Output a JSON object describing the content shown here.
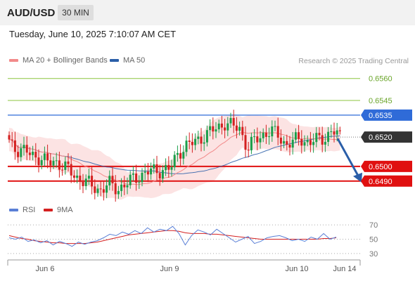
{
  "header": {
    "symbol": "AUD/USD",
    "timeframe": "30 MIN",
    "datetime": "Tuesday, June 10, 2025 7:10:07 AM CET"
  },
  "legend": {
    "ma20": "MA 20 + Bollinger Bands",
    "ma50": "MA 50",
    "credit": "Research © 2025 Trading Central",
    "rsi": "RSI",
    "ma9": "9MA"
  },
  "colors": {
    "ma20": "#f28a8a",
    "ma50": "#2a5ea8",
    "bands_fill": "#fbd9d9",
    "bull": "#1a9e4a",
    "bear": "#d42020",
    "rsi": "#5a7fd6",
    "ma9": "#d42020",
    "resistance_green": "#8cc63f",
    "resistance_blue": "#2f6bd8",
    "support_red": "#e01010",
    "current": "#333333",
    "arrow": "#2a5ea8"
  },
  "chart_data": [
    {
      "type": "candlestick",
      "title": "AUD/USD",
      "x_labels": [
        "Jun 6",
        "Jun 9",
        "Jun 10",
        "Jun 14"
      ],
      "ylim": [
        0.6476,
        0.6568
      ],
      "price_labels": [
        {
          "value": 0.656,
          "text": "0.6560",
          "style": "green-line",
          "line": true
        },
        {
          "value": 0.6545,
          "text": "0.6545",
          "style": "green-line",
          "line": true
        },
        {
          "value": 0.6535,
          "text": "0.6535",
          "style": "blue-box",
          "line": true
        },
        {
          "value": 0.652,
          "text": "0.6520",
          "style": "current-box",
          "line": false
        },
        {
          "value": 0.65,
          "text": "0.6500",
          "style": "red-box",
          "line": true
        },
        {
          "value": 0.649,
          "text": "0.6490",
          "style": "red-box",
          "line": true
        }
      ],
      "current_price": 0.652,
      "forecast_arrow": {
        "from": 0.652,
        "to": 0.649
      },
      "close_path": [
        0.6517,
        0.6512,
        0.651,
        0.6508,
        0.6506,
        0.6502,
        0.6504,
        0.65,
        0.6496,
        0.6492,
        0.6489,
        0.6486,
        0.6484,
        0.6488,
        0.6485,
        0.6487,
        0.6491,
        0.6494,
        0.6496,
        0.6497,
        0.6498,
        0.6498,
        0.651,
        0.6514,
        0.6516,
        0.652,
        0.6523,
        0.6526,
        0.653,
        0.6527,
        0.6526,
        0.6512,
        0.6518,
        0.6522,
        0.6524,
        0.6521,
        0.6515,
        0.6517,
        0.6519,
        0.6516,
        0.6518,
        0.652,
        0.6524,
        0.652
      ]
    },
    {
      "type": "line",
      "title": "RSI",
      "series": [
        {
          "name": "RSI",
          "values": [
            52,
            50,
            53,
            47,
            49,
            45,
            48,
            42,
            47,
            44,
            40,
            46,
            43,
            46,
            48,
            52,
            57,
            55,
            60,
            57,
            62,
            58,
            66,
            60,
            64,
            62,
            68,
            58,
            42,
            55,
            63,
            60,
            56,
            64,
            58,
            52,
            46,
            50,
            54,
            44,
            47,
            52,
            54,
            55,
            52,
            48,
            50,
            47,
            53,
            50,
            58,
            50,
            53
          ]
        },
        {
          "name": "9MA",
          "values": [
            55,
            53,
            51,
            50,
            48,
            47,
            46,
            45,
            45,
            44,
            44,
            44,
            44,
            45,
            46,
            48,
            50,
            52,
            54,
            56,
            57,
            58,
            59,
            60,
            61,
            62,
            62,
            61,
            59,
            58,
            58,
            58,
            57,
            57,
            56,
            55,
            54,
            53,
            52,
            51,
            50,
            50,
            50,
            50,
            50,
            50,
            50,
            50,
            50,
            50,
            51,
            51,
            52
          ]
        }
      ],
      "ylim": [
        25,
        78
      ],
      "ticks": [
        70,
        50,
        30
      ]
    }
  ]
}
